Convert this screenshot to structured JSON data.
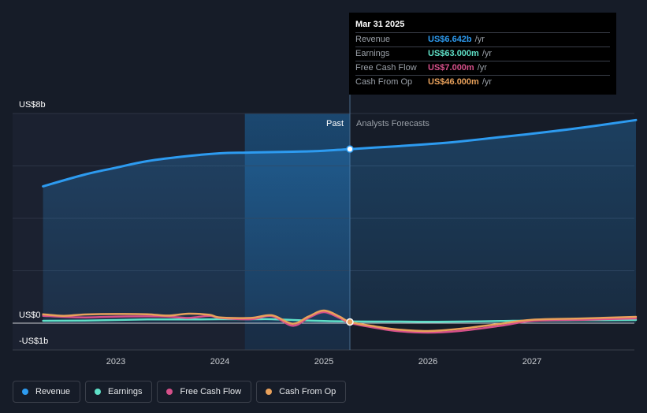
{
  "chart_data": {
    "type": "line",
    "y_axis_labels": [
      "US$8b",
      "US$0",
      "-US$1b"
    ],
    "ylim": [
      -1,
      8
    ],
    "x_ticks": [
      "2023",
      "2024",
      "2025",
      "2026",
      "2027"
    ],
    "past_label": "Past",
    "forecast_label": "Analysts Forecasts",
    "units": "US$ billions",
    "series": [
      {
        "name": "Revenue",
        "color": "#2d9bf0",
        "points": [
          [
            2022.3,
            5.22
          ],
          [
            2022.7,
            5.67
          ],
          [
            2023.0,
            5.93
          ],
          [
            2023.3,
            6.18
          ],
          [
            2023.7,
            6.38
          ],
          [
            2024.0,
            6.48
          ],
          [
            2024.3,
            6.51
          ],
          [
            2024.7,
            6.54
          ],
          [
            2025.0,
            6.58
          ],
          [
            2025.25,
            6.642
          ],
          [
            2025.7,
            6.75
          ],
          [
            2026.0,
            6.83
          ],
          [
            2026.3,
            6.93
          ],
          [
            2026.7,
            7.1
          ],
          [
            2027.0,
            7.23
          ],
          [
            2027.5,
            7.47
          ],
          [
            2028.0,
            7.75
          ]
        ]
      },
      {
        "name": "Earnings",
        "color": "#5fe0c7",
        "points": [
          [
            2022.3,
            0.09
          ],
          [
            2022.7,
            0.1
          ],
          [
            2023.0,
            0.12
          ],
          [
            2023.3,
            0.14
          ],
          [
            2023.7,
            0.14
          ],
          [
            2024.0,
            0.15
          ],
          [
            2024.3,
            0.15
          ],
          [
            2024.5,
            0.15
          ],
          [
            2024.7,
            0.12
          ],
          [
            2025.0,
            0.08
          ],
          [
            2025.25,
            0.063
          ],
          [
            2025.7,
            0.06
          ],
          [
            2026.0,
            0.05
          ],
          [
            2026.3,
            0.06
          ],
          [
            2026.7,
            0.08
          ],
          [
            2027.0,
            0.1
          ],
          [
            2027.5,
            0.11
          ],
          [
            2028.0,
            0.12
          ]
        ]
      },
      {
        "name": "Free Cash Flow",
        "color": "#d6508a",
        "points": [
          [
            2022.3,
            0.28
          ],
          [
            2022.5,
            0.24
          ],
          [
            2022.7,
            0.22
          ],
          [
            2023.0,
            0.25
          ],
          [
            2023.3,
            0.26
          ],
          [
            2023.5,
            0.25
          ],
          [
            2023.7,
            0.2
          ],
          [
            2023.9,
            0.28
          ],
          [
            2024.0,
            0.2
          ],
          [
            2024.3,
            0.15
          ],
          [
            2024.5,
            0.27
          ],
          [
            2024.7,
            -0.1
          ],
          [
            2024.85,
            0.2
          ],
          [
            2025.0,
            0.42
          ],
          [
            2025.15,
            0.2
          ],
          [
            2025.25,
            0.007
          ],
          [
            2025.5,
            -0.18
          ],
          [
            2025.7,
            -0.3
          ],
          [
            2026.0,
            -0.36
          ],
          [
            2026.3,
            -0.3
          ],
          [
            2026.7,
            -0.1
          ],
          [
            2027.0,
            0.08
          ],
          [
            2027.5,
            0.13
          ],
          [
            2028.0,
            0.18
          ]
        ]
      },
      {
        "name": "Cash From Op",
        "color": "#e9a15b",
        "points": [
          [
            2022.3,
            0.34
          ],
          [
            2022.5,
            0.28
          ],
          [
            2022.7,
            0.33
          ],
          [
            2023.0,
            0.35
          ],
          [
            2023.3,
            0.34
          ],
          [
            2023.5,
            0.29
          ],
          [
            2023.7,
            0.36
          ],
          [
            2023.9,
            0.32
          ],
          [
            2024.0,
            0.22
          ],
          [
            2024.3,
            0.2
          ],
          [
            2024.5,
            0.3
          ],
          [
            2024.7,
            -0.02
          ],
          [
            2024.85,
            0.25
          ],
          [
            2025.0,
            0.48
          ],
          [
            2025.15,
            0.25
          ],
          [
            2025.25,
            0.046
          ],
          [
            2025.5,
            -0.13
          ],
          [
            2025.7,
            -0.24
          ],
          [
            2026.0,
            -0.3
          ],
          [
            2026.3,
            -0.22
          ],
          [
            2026.7,
            -0.02
          ],
          [
            2027.0,
            0.13
          ],
          [
            2027.5,
            0.18
          ],
          [
            2028.0,
            0.24
          ]
        ]
      }
    ],
    "highlight": {
      "x": 2025.25,
      "date_label": "Mar 31 2025"
    }
  },
  "tooltip": {
    "title": "Mar 31 2025",
    "rows": [
      {
        "label": "Revenue",
        "value": "US$6.642b",
        "unit": "/yr",
        "color": "#2d9bf0"
      },
      {
        "label": "Earnings",
        "value": "US$63.000m",
        "unit": "/yr",
        "color": "#5fe0c7"
      },
      {
        "label": "Free Cash Flow",
        "value": "US$7.000m",
        "unit": "/yr",
        "color": "#d6508a"
      },
      {
        "label": "Cash From Op",
        "value": "US$46.000m",
        "unit": "/yr",
        "color": "#e9a15b"
      }
    ]
  },
  "legend": [
    {
      "label": "Revenue",
      "color": "#2d9bf0"
    },
    {
      "label": "Earnings",
      "color": "#5fe0c7"
    },
    {
      "label": "Free Cash Flow",
      "color": "#d6508a"
    },
    {
      "label": "Cash From Op",
      "color": "#e9a15b"
    }
  ]
}
